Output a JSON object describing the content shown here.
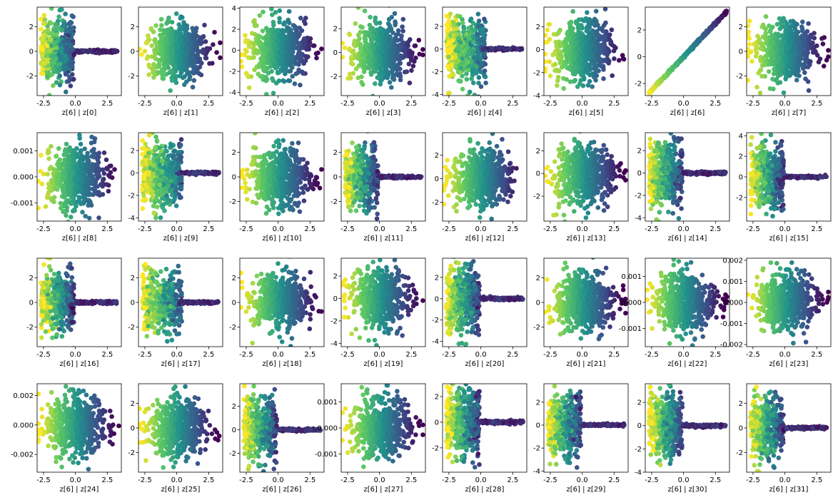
{
  "chart_data": {
    "type": "scatter",
    "layout": {
      "rows": 4,
      "cols": 8
    },
    "colormap": "viridis",
    "colors": {
      "viridis_dark": "#440154",
      "viridis_mid": "#21918c",
      "viridis_light": "#fde725"
    },
    "x_ticks": [
      -2.5,
      0.0,
      2.5
    ],
    "x_tick_labels": [
      "-2.5",
      "0.0",
      "2.5"
    ],
    "xlim": [
      -3.0,
      3.6
    ],
    "panels": [
      {
        "xlabel": "z[6] | z[0]",
        "shape": "tail",
        "ylim": [
          -3.6,
          3.6
        ],
        "yticks": [
          -2,
          0,
          2
        ],
        "ytick_labels": [
          "-2",
          "0",
          "2"
        ]
      },
      {
        "xlabel": "z[6] | z[1]",
        "shape": "blob",
        "ylim": [
          -3.6,
          3.6
        ],
        "yticks": [
          -2,
          0,
          2
        ],
        "ytick_labels": [
          "-2",
          "0",
          "2"
        ]
      },
      {
        "xlabel": "z[6] | z[2]",
        "shape": "blob",
        "ylim": [
          -4.3,
          4.1
        ],
        "yticks": [
          -4,
          -2,
          0,
          2,
          4
        ],
        "ytick_labels": [
          "-4",
          "-2",
          "0",
          "2",
          "4"
        ]
      },
      {
        "xlabel": "z[6] | z[3]",
        "shape": "blob",
        "ylim": [
          -3.6,
          3.8
        ],
        "yticks": [
          -2,
          0,
          2
        ],
        "ytick_labels": [
          "-2",
          "0",
          "2"
        ]
      },
      {
        "xlabel": "z[6] | z[4]",
        "shape": "tail_dense",
        "ylim": [
          -4.1,
          3.7
        ],
        "yticks": [
          -4,
          -2,
          0,
          2
        ],
        "ytick_labels": [
          "-4",
          "-2",
          "0",
          "2"
        ]
      },
      {
        "xlabel": "z[6] | z[5]",
        "shape": "blob",
        "ylim": [
          -4.0,
          3.7
        ],
        "yticks": [
          -4,
          -2,
          0,
          2
        ],
        "ytick_labels": [
          "-4",
          "-2",
          "0",
          "2"
        ]
      },
      {
        "xlabel": "z[6] | z[6]",
        "shape": "diag",
        "ylim": [
          -2.9,
          3.7
        ],
        "yticks": [
          -2,
          0,
          2
        ],
        "ytick_labels": [
          "-2",
          "0",
          "2"
        ]
      },
      {
        "xlabel": "z[6] | z[7]",
        "shape": "blob",
        "ylim": [
          -3.6,
          3.6
        ],
        "yticks": [
          -2,
          0,
          2
        ],
        "ytick_labels": [
          "-2",
          "0",
          "2"
        ]
      },
      {
        "xlabel": "z[6] | z[8]",
        "shape": "blob",
        "ylim": [
          -0.0017,
          0.0017
        ],
        "yticks": [
          -0.001,
          0,
          0.001
        ],
        "ytick_labels": [
          "-0.001",
          "0.000",
          "0.001"
        ]
      },
      {
        "xlabel": "z[6] | z[9]",
        "shape": "tail_dense",
        "ylim": [
          -4.3,
          3.6
        ],
        "yticks": [
          -4,
          -2,
          0,
          2
        ],
        "ytick_labels": [
          "-4",
          "-2",
          "0",
          "2"
        ]
      },
      {
        "xlabel": "z[6] | z[10]",
        "shape": "blob",
        "ylim": [
          -3.6,
          3.6
        ],
        "yticks": [
          -2,
          0,
          2
        ],
        "ytick_labels": [
          "-2",
          "0",
          "2"
        ]
      },
      {
        "xlabel": "z[6] | z[11]",
        "shape": "tail",
        "ylim": [
          -3.6,
          3.6
        ],
        "yticks": [
          -2,
          0,
          2
        ],
        "ytick_labels": [
          "-2",
          "0",
          "2"
        ]
      },
      {
        "xlabel": "z[6] | z[12]",
        "shape": "blob",
        "ylim": [
          -3.6,
          3.9
        ],
        "yticks": [
          -2,
          0,
          2
        ],
        "ytick_labels": [
          "-2",
          "0",
          "2"
        ]
      },
      {
        "xlabel": "z[6] | z[13]",
        "shape": "blob",
        "ylim": [
          -4.2,
          3.6
        ],
        "yticks": [
          -2,
          0,
          2
        ],
        "ytick_labels": [
          "-2",
          "0",
          "2"
        ]
      },
      {
        "xlabel": "z[6] | z[14]",
        "shape": "tail",
        "ylim": [
          -4.3,
          3.6
        ],
        "yticks": [
          -4,
          -2,
          0,
          2
        ],
        "ytick_labels": [
          "-4",
          "-2",
          "0",
          "2"
        ]
      },
      {
        "xlabel": "z[6] | z[15]",
        "shape": "tail",
        "ylim": [
          -4.3,
          4.3
        ],
        "yticks": [
          -2,
          0,
          2,
          4
        ],
        "ytick_labels": [
          "-2",
          "0",
          "2",
          "4"
        ]
      },
      {
        "xlabel": "z[6] | z[16]",
        "shape": "tail",
        "ylim": [
          -3.6,
          3.6
        ],
        "yticks": [
          -2,
          0,
          2
        ],
        "ytick_labels": [
          "-2",
          "0",
          "2"
        ]
      },
      {
        "xlabel": "z[6] | z[17]",
        "shape": "tail_dense",
        "ylim": [
          -3.6,
          3.6
        ],
        "yticks": [
          -2,
          0,
          2
        ],
        "ytick_labels": [
          "-2",
          "0",
          "2"
        ]
      },
      {
        "xlabel": "z[6] | z[18]",
        "shape": "blob",
        "ylim": [
          -3.6,
          3.6
        ],
        "yticks": [
          -2,
          0,
          2
        ],
        "ytick_labels": [
          "-2",
          "0",
          "2"
        ]
      },
      {
        "xlabel": "z[6] | z[19]",
        "shape": "blob",
        "ylim": [
          -4.3,
          3.6
        ],
        "yticks": [
          -4,
          -2,
          0,
          2
        ],
        "ytick_labels": [
          "-4",
          "-2",
          "0",
          "2"
        ]
      },
      {
        "xlabel": "z[6] | z[20]",
        "shape": "tail",
        "ylim": [
          -4.5,
          3.8
        ],
        "yticks": [
          -4,
          -2,
          0,
          2
        ],
        "ytick_labels": [
          "-4",
          "-2",
          "0",
          "2"
        ]
      },
      {
        "xlabel": "z[6] | z[21]",
        "shape": "blob",
        "ylim": [
          -3.6,
          3.6
        ],
        "yticks": [
          -2,
          0,
          2
        ],
        "ytick_labels": [
          "-2",
          "0",
          "2"
        ]
      },
      {
        "xlabel": "z[6] | z[22]",
        "shape": "blob",
        "ylim": [
          -0.0017,
          0.0017
        ],
        "yticks": [
          -0.001,
          0,
          0.001
        ],
        "ytick_labels": [
          "-0.001",
          "0.000",
          "0.001"
        ]
      },
      {
        "xlabel": "z[6] | z[23]",
        "shape": "blob",
        "ylim": [
          -0.0021,
          0.0021
        ],
        "yticks": [
          -0.002,
          -0.001,
          0,
          0.001,
          0.002
        ],
        "ytick_labels": [
          "-0.002",
          "-0.001",
          "0.000",
          "0.001",
          "0.002"
        ]
      },
      {
        "xlabel": "z[6] | z[24]",
        "shape": "blob",
        "ylim": [
          -0.0032,
          0.0028
        ],
        "yticks": [
          -0.002,
          0,
          0.002
        ],
        "ytick_labels": [
          "-0.002",
          "0.000",
          "0.002"
        ]
      },
      {
        "xlabel": "z[6] | z[25]",
        "shape": "blob",
        "ylim": [
          -3.6,
          3.6
        ],
        "yticks": [
          -2,
          0,
          2
        ],
        "ytick_labels": [
          "-2",
          "0",
          "2"
        ]
      },
      {
        "xlabel": "z[6] | z[26]",
        "shape": "tail",
        "ylim": [
          -3.6,
          3.9
        ],
        "yticks": [
          -2,
          0,
          2
        ],
        "ytick_labels": [
          "-2",
          "0",
          "2"
        ]
      },
      {
        "xlabel": "z[6] | z[27]",
        "shape": "blob",
        "ylim": [
          -0.0017,
          0.0017
        ],
        "yticks": [
          -0.001,
          0,
          0.001
        ],
        "ytick_labels": [
          "-0.001",
          "0.000",
          "0.001"
        ]
      },
      {
        "xlabel": "z[6] | z[28]",
        "shape": "tail",
        "ylim": [
          -3.9,
          3.0
        ],
        "yticks": [
          -2,
          0,
          2
        ],
        "ytick_labels": [
          "-2",
          "0",
          "2"
        ]
      },
      {
        "xlabel": "z[6] | z[29]",
        "shape": "tail",
        "ylim": [
          -4.1,
          3.6
        ],
        "yticks": [
          -4,
          -2,
          0,
          2
        ],
        "ytick_labels": [
          "-4",
          "-2",
          "0",
          "2"
        ]
      },
      {
        "xlabel": "z[6] | z[30]",
        "shape": "tail",
        "ylim": [
          -4.0,
          3.6
        ],
        "yticks": [
          -4,
          -2,
          0,
          2
        ],
        "ytick_labels": [
          "-4",
          "-2",
          "0",
          "2"
        ]
      },
      {
        "xlabel": "z[6] | z[31]",
        "shape": "tail",
        "ylim": [
          -3.6,
          3.6
        ],
        "yticks": [
          -2,
          0,
          2
        ],
        "ytick_labels": [
          "-2",
          "0",
          "2"
        ]
      }
    ]
  }
}
